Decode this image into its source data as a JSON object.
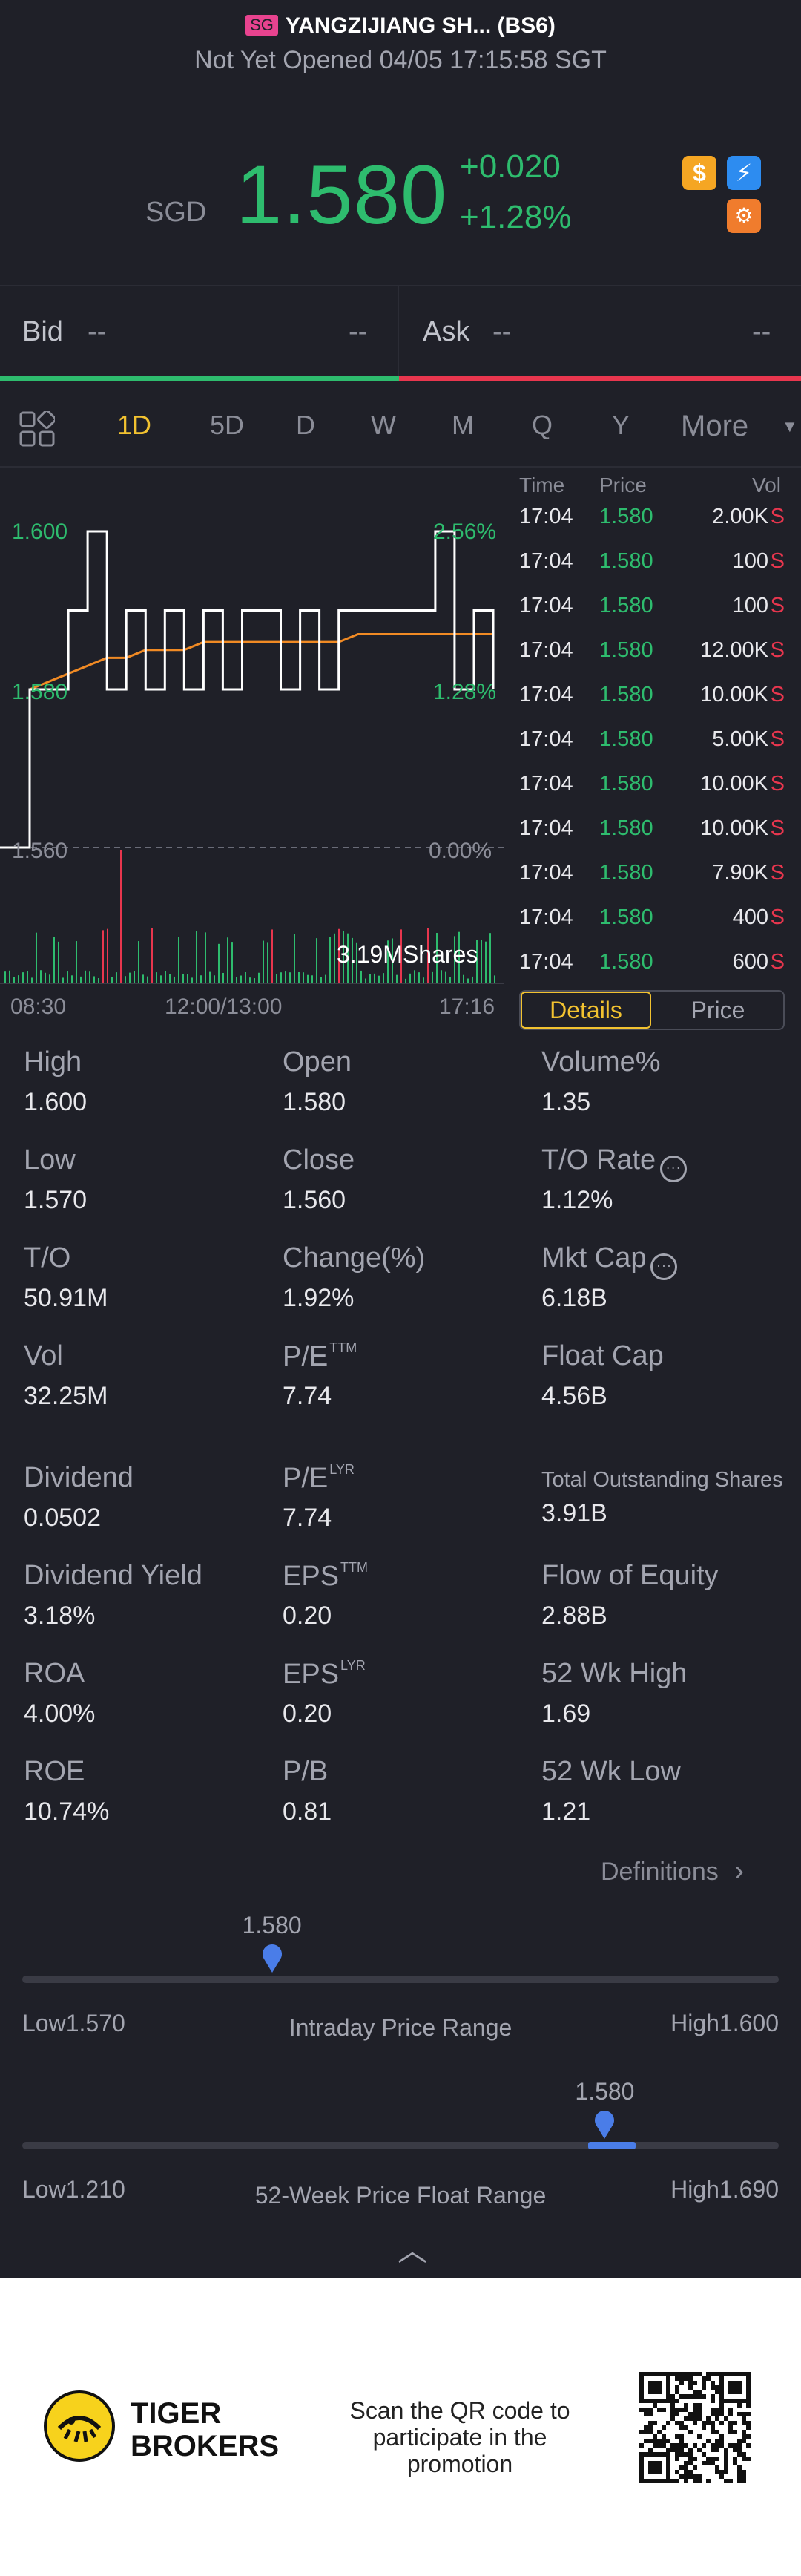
{
  "header": {
    "exchange_badge": "SG",
    "title": "YANGZIJIANG SH... (BS6)",
    "status": "Not Yet Opened 04/05 17:15:58 SGT",
    "currency": "SGD",
    "price": "1.580",
    "change": "+0.020",
    "change_pct": "+1.28%",
    "icons": [
      "dollar-icon",
      "lightning-icon",
      "shield-gear-icon"
    ]
  },
  "bid_ask": {
    "bid_label": "Bid",
    "bid_price": "--",
    "bid_size": "--",
    "ask_label": "Ask",
    "ask_price": "--",
    "ask_size": "--"
  },
  "tabs": {
    "items": [
      "1D",
      "5D",
      "D",
      "W",
      "M",
      "Q",
      "Y",
      "More"
    ],
    "active": "1D"
  },
  "chart": {
    "y_top": "1.600",
    "y_mid": "1.580",
    "y_low": "1.560",
    "pct_top": "2.56%",
    "pct_mid": "1.28%",
    "pct_low": "0.00%",
    "volume_label": "3.19MShares",
    "x_labels": [
      "08:30",
      "12:00/13:00",
      "17:16"
    ]
  },
  "chart_data": {
    "type": "line",
    "title": "",
    "xlabel": "",
    "ylabel": "",
    "ylim": [
      1.56,
      1.6
    ],
    "price_series": [
      1.56,
      1.58,
      1.58,
      1.59,
      1.6,
      1.58,
      1.59,
      1.58,
      1.59,
      1.58,
      1.59,
      1.58,
      1.59,
      1.59,
      1.58,
      1.59,
      1.58,
      1.59,
      1.59,
      1.59,
      1.59,
      1.59,
      1.6,
      1.58,
      1.59,
      1.58
    ],
    "avg_series": [
      1.58,
      1.58,
      1.581,
      1.582,
      1.583,
      1.584,
      1.584,
      1.585,
      1.585,
      1.585,
      1.586,
      1.586,
      1.586,
      1.586,
      1.586,
      1.586,
      1.586,
      1.586,
      1.587,
      1.587,
      1.587,
      1.587,
      1.587,
      1.587,
      1.587,
      1.587
    ],
    "prev_close": 1.56
  },
  "trades": {
    "headers": [
      "Time",
      "Price",
      "Vol"
    ],
    "rows": [
      {
        "time": "17:04",
        "price": "1.580",
        "vol": "2.00K",
        "side": "S"
      },
      {
        "time": "17:04",
        "price": "1.580",
        "vol": "100",
        "side": "S"
      },
      {
        "time": "17:04",
        "price": "1.580",
        "vol": "100",
        "side": "S"
      },
      {
        "time": "17:04",
        "price": "1.580",
        "vol": "12.00K",
        "side": "S"
      },
      {
        "time": "17:04",
        "price": "1.580",
        "vol": "10.00K",
        "side": "S"
      },
      {
        "time": "17:04",
        "price": "1.580",
        "vol": "5.00K",
        "side": "S"
      },
      {
        "time": "17:04",
        "price": "1.580",
        "vol": "10.00K",
        "side": "S"
      },
      {
        "time": "17:04",
        "price": "1.580",
        "vol": "10.00K",
        "side": "S"
      },
      {
        "time": "17:04",
        "price": "1.580",
        "vol": "7.90K",
        "side": "S"
      },
      {
        "time": "17:04",
        "price": "1.580",
        "vol": "400",
        "side": "S"
      },
      {
        "time": "17:04",
        "price": "1.580",
        "vol": "600",
        "side": "S"
      }
    ],
    "segment": [
      "Details",
      "Price"
    ]
  },
  "stats": {
    "high_l": "High",
    "high_v": "1.600",
    "open_l": "Open",
    "open_v": "1.580",
    "volpct_l": "Volume%",
    "volpct_v": "1.35",
    "low_l": "Low",
    "low_v": "1.570",
    "close_l": "Close",
    "close_v": "1.560",
    "torate_l": "T/O Rate",
    "torate_v": "1.12%",
    "to_l": "T/O",
    "to_v": "50.91M",
    "change_l": "Change(%)",
    "change_v": "1.92%",
    "mktcap_l": "Mkt Cap",
    "mktcap_v": "6.18B",
    "vol_l": "Vol",
    "vol_v": "32.25M",
    "pe_ttm_l": "P/E",
    "pe_ttm_sup": "TTM",
    "pe_ttm_v": "7.74",
    "floatcap_l": "Float Cap",
    "floatcap_v": "4.56B",
    "div_l": "Dividend",
    "div_v": "0.0502",
    "pe_lyr_l": "P/E",
    "pe_lyr_sup": "LYR",
    "pe_lyr_v": "7.74",
    "tos_l": "Total Outstanding Shares",
    "tos_v": "3.91B",
    "divy_l": "Dividend Yield",
    "divy_v": "3.18%",
    "eps_ttm_l": "EPS",
    "eps_ttm_sup": "TTM",
    "eps_ttm_v": "0.20",
    "foe_l": "Flow of Equity",
    "foe_v": "2.88B",
    "roa_l": "ROA",
    "roa_v": "4.00%",
    "eps_lyr_l": "EPS",
    "eps_lyr_sup": "LYR",
    "eps_lyr_v": "0.20",
    "wkh_l": "52 Wk High",
    "wkh_v": "1.69",
    "roe_l": "ROE",
    "roe_v": "10.74%",
    "pb_l": "P/B",
    "pb_v": "0.81",
    "wkl_l": "52 Wk Low",
    "wkl_v": "1.21",
    "definitions": "Definitions"
  },
  "ranges": {
    "intraday": {
      "current": "1.580",
      "low": "Low1.570",
      "high": "High1.600",
      "title": "Intraday Price Range",
      "position": 0.33
    },
    "week52": {
      "current": "1.580",
      "low": "Low1.210",
      "high": "High1.690",
      "title": "52-Week Price Float Range",
      "position": 0.77
    }
  },
  "footer": {
    "brand_line1": "TIGER",
    "brand_line2": "BROKERS",
    "promo": "Scan the QR code to participate in the promotion"
  }
}
